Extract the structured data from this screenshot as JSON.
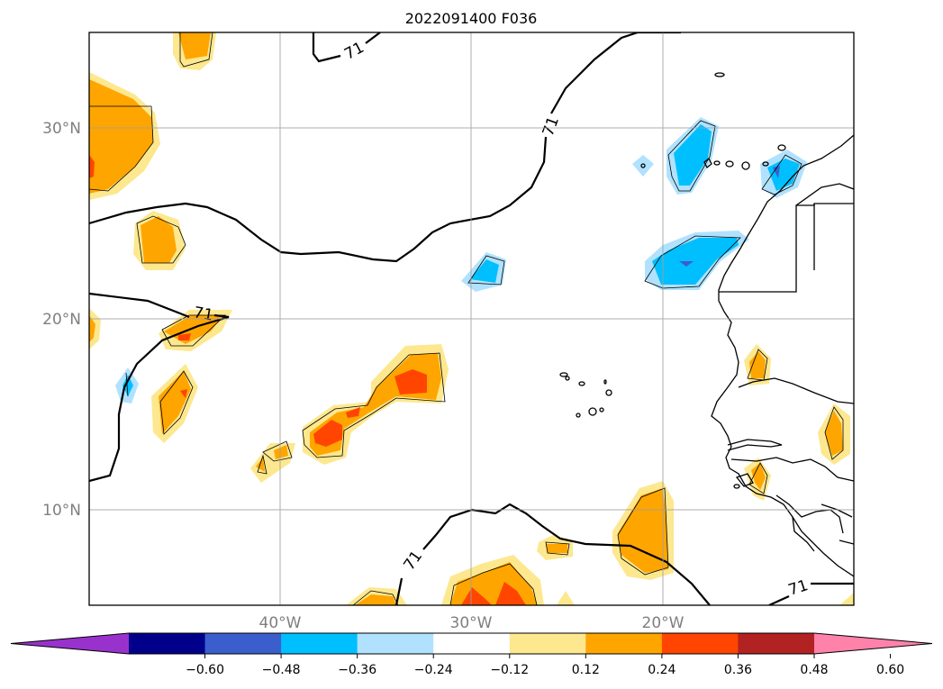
{
  "chart_data": {
    "type": "contour_map",
    "title": "2022091400 F036",
    "x_range_lon": [
      -50,
      -10
    ],
    "y_range_lat": [
      5,
      35
    ],
    "lon_gridlines": [
      -40,
      -30,
      -20
    ],
    "lat_gridlines": [
      10,
      20,
      30
    ],
    "lon_tick_labels": [
      "40°W",
      "30°W",
      "20°W"
    ],
    "lat_tick_labels": [
      "10°N",
      "20°N",
      "30°N"
    ],
    "grid": true,
    "contour_line_label": "71",
    "colorbar": {
      "extend": "both",
      "tick_labels": [
        "−0.60",
        "−0.48",
        "−0.36",
        "−0.24",
        "−0.12",
        "0.12",
        "0.24",
        "0.36",
        "0.48",
        "0.60"
      ],
      "colors": [
        "#9932cc",
        "#00008b",
        "#3a5fcd",
        "#00bfff",
        "#b0e2ff",
        "#ffffff",
        "#fde88f",
        "#ffa500",
        "#ff4500",
        "#b22222",
        "#ff82ab"
      ]
    }
  }
}
